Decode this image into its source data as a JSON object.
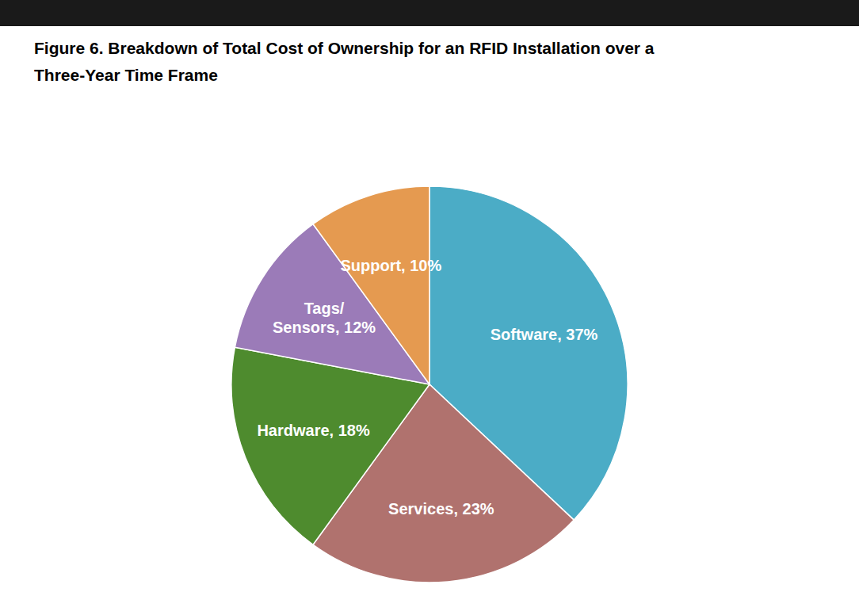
{
  "chart_data": {
    "type": "pie",
    "title": "Figure 6. Breakdown of Total Cost of Ownership for an RFID Installation over a\nThree-Year Time Frame",
    "values": [
      37,
      23,
      18,
      12,
      10
    ],
    "value_labels": [
      "Software, 37%",
      "Services, 23%",
      "Hardware, 18%",
      "Tags/\nSensors, 12%",
      "Support, 10%"
    ],
    "colors": [
      "#4BACC6",
      "#B0726E",
      "#4E8B2E",
      "#9B7BB8",
      "#E59A50"
    ],
    "data_labels": true
  }
}
